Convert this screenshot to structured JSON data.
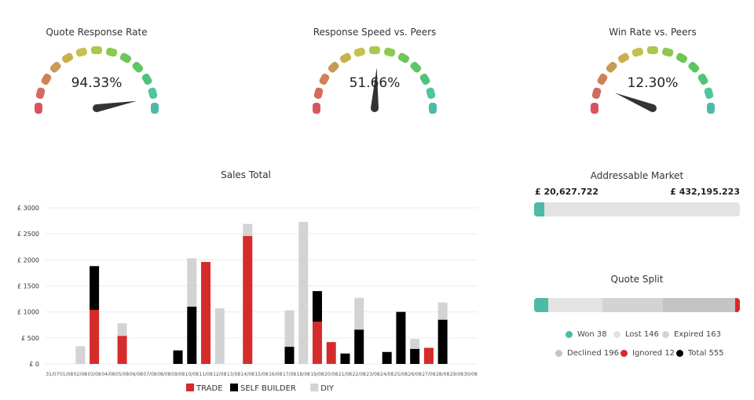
{
  "gauges": [
    {
      "title": "Quote Response Rate",
      "display": "94.33%",
      "value": 94.33
    },
    {
      "title": "Response Speed vs. Peers",
      "display": "51.66%",
      "value": 51.66
    },
    {
      "title": "Win Rate vs. Peers",
      "display": "12.30%",
      "value": 12.3
    }
  ],
  "gauge_colors": [
    "#d9545f",
    "#d46a60",
    "#cf8158",
    "#c99a56",
    "#c8b04e",
    "#c4c24d",
    "#a9c84c",
    "#8bc94f",
    "#6cc658",
    "#5bc664",
    "#52c27b",
    "#4fc59a",
    "#4cbba5"
  ],
  "chart_data": {
    "type": "bar",
    "title": "Sales Total",
    "categories": [
      "31/07",
      "01/08",
      "02/08",
      "03/08",
      "04/08",
      "05/08",
      "06/08",
      "07/08",
      "08/08",
      "09/08",
      "10/08",
      "11/08",
      "12/08",
      "13/08",
      "14/08",
      "15/08",
      "16/08",
      "17/08",
      "18/08",
      "19/08",
      "20/08",
      "21/08",
      "22/08",
      "23/08",
      "24/08",
      "25/08",
      "26/08",
      "27/08",
      "28/08",
      "29/08",
      "30/08"
    ],
    "y_ticks": [
      "£ 0",
      "£ 500",
      "£ 1000",
      "£ 1500",
      "£ 2000",
      "£ 2500",
      "£ 3000"
    ],
    "ylim": [
      0,
      3000
    ],
    "stacked": true,
    "series": [
      {
        "name": "TRADE",
        "color": "#d62b2b",
        "values": [
          0,
          0,
          0,
          1040,
          0,
          540,
          0,
          0,
          0,
          0,
          0,
          1960,
          0,
          0,
          2460,
          0,
          0,
          0,
          0,
          810,
          420,
          0,
          0,
          0,
          0,
          0,
          0,
          310,
          0,
          0,
          0
        ]
      },
      {
        "name": "SELF BUILDER",
        "color": "#000000",
        "values": [
          0,
          0,
          0,
          840,
          0,
          0,
          0,
          0,
          0,
          260,
          1100,
          0,
          0,
          0,
          0,
          0,
          0,
          330,
          0,
          590,
          0,
          200,
          660,
          0,
          230,
          1000,
          290,
          0,
          850,
          0,
          0
        ]
      },
      {
        "name": "DIY",
        "color": "#d3d3d3",
        "values": [
          0,
          0,
          340,
          0,
          0,
          240,
          0,
          0,
          0,
          0,
          930,
          0,
          1070,
          0,
          230,
          0,
          0,
          700,
          2730,
          0,
          0,
          0,
          610,
          0,
          0,
          0,
          190,
          0,
          330,
          0,
          0
        ]
      }
    ],
    "legend_position": "bottom",
    "grid": true
  },
  "market": {
    "title": "Addressable Market",
    "left_value": "£ 20,627.722",
    "right_value": "£ 432,195.223",
    "fill_fraction": 0.048,
    "fill_color": "#4cbba5"
  },
  "quote_split": {
    "title": "Quote Split",
    "segments": [
      {
        "label": "Won 38",
        "value": 38,
        "color": "#4cbba5"
      },
      {
        "label": "Lost 146",
        "value": 146,
        "color": "#e3e3e3"
      },
      {
        "label": "Expired 163",
        "value": 163,
        "color": "#d3d3d3"
      },
      {
        "label": "Declined 196",
        "value": 196,
        "color": "#c4c4c4"
      },
      {
        "label": "Ignored 12",
        "value": 12,
        "color": "#d62b2b"
      }
    ],
    "total_label": "Total 555",
    "total_color": "#000000"
  }
}
